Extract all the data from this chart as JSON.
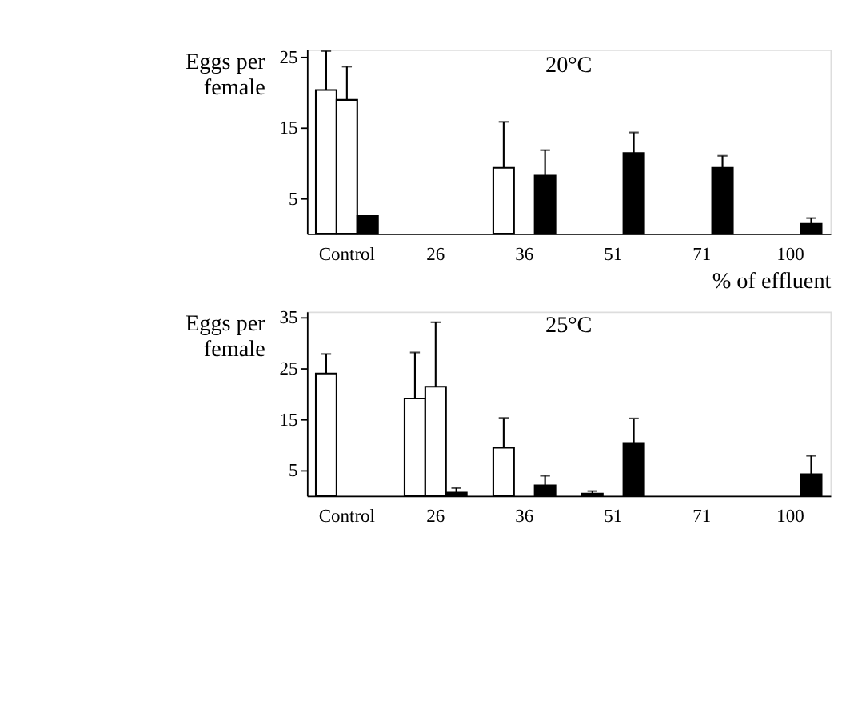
{
  "chart_data": [
    {
      "type": "bar",
      "title": "20°C",
      "xlabel": "% of effluent",
      "ylabel": "Eggs per female",
      "categories": [
        "Control",
        "26",
        "36",
        "51",
        "71",
        "100"
      ],
      "ylim": [
        0,
        26
      ],
      "yticks": [
        5,
        15,
        25
      ],
      "grid": false,
      "series": [
        {
          "color": "#ffffff",
          "values": [
            20.3,
            null,
            9.3,
            null,
            null,
            null
          ],
          "errors": [
            [
              20.3,
              25.8
            ],
            null,
            [
              9.3,
              15.8
            ],
            null,
            null,
            null
          ]
        },
        {
          "color": "#ffffff",
          "values": [
            18.9,
            null,
            null,
            null,
            null,
            null
          ],
          "errors": [
            [
              18.9,
              23.6
            ],
            null,
            null,
            null,
            null,
            null
          ]
        },
        {
          "color": "#000000",
          "values": [
            2.5,
            null,
            8.2,
            11.4,
            9.3,
            1.4
          ],
          "errors": [
            null,
            null,
            [
              8.2,
              11.8
            ],
            [
              11.4,
              14.3
            ],
            [
              9.3,
              11.0
            ],
            [
              1.4,
              2.2
            ]
          ]
        }
      ]
    },
    {
      "type": "bar",
      "title": "25°C",
      "ylabel": "Eggs per female",
      "categories": [
        "Control",
        "26",
        "36",
        "51",
        "71",
        "100"
      ],
      "ylim": [
        0,
        36
      ],
      "yticks": [
        5,
        15,
        25,
        35
      ],
      "grid": false,
      "series": [
        {
          "color": "#ffffff",
          "values": [
            23.9,
            19.0,
            9.4,
            0.4,
            null,
            null
          ],
          "errors": [
            [
              23.9,
              27.7
            ],
            [
              19.0,
              28.0
            ],
            [
              9.4,
              15.2
            ],
            [
              0.4,
              0.9
            ],
            null,
            null
          ]
        },
        {
          "color": "#ffffff",
          "values": [
            null,
            21.3,
            null,
            null,
            null,
            null
          ],
          "errors": [
            null,
            [
              21.3,
              33.9
            ],
            null,
            null,
            null,
            null
          ]
        },
        {
          "color": "#000000",
          "values": [
            null,
            0.6,
            2.0,
            10.3,
            null,
            4.2
          ],
          "errors": [
            null,
            [
              0.6,
              1.5
            ],
            [
              2.0,
              3.9
            ],
            [
              10.3,
              15.1
            ],
            null,
            [
              4.2,
              7.8
            ]
          ]
        }
      ]
    }
  ]
}
